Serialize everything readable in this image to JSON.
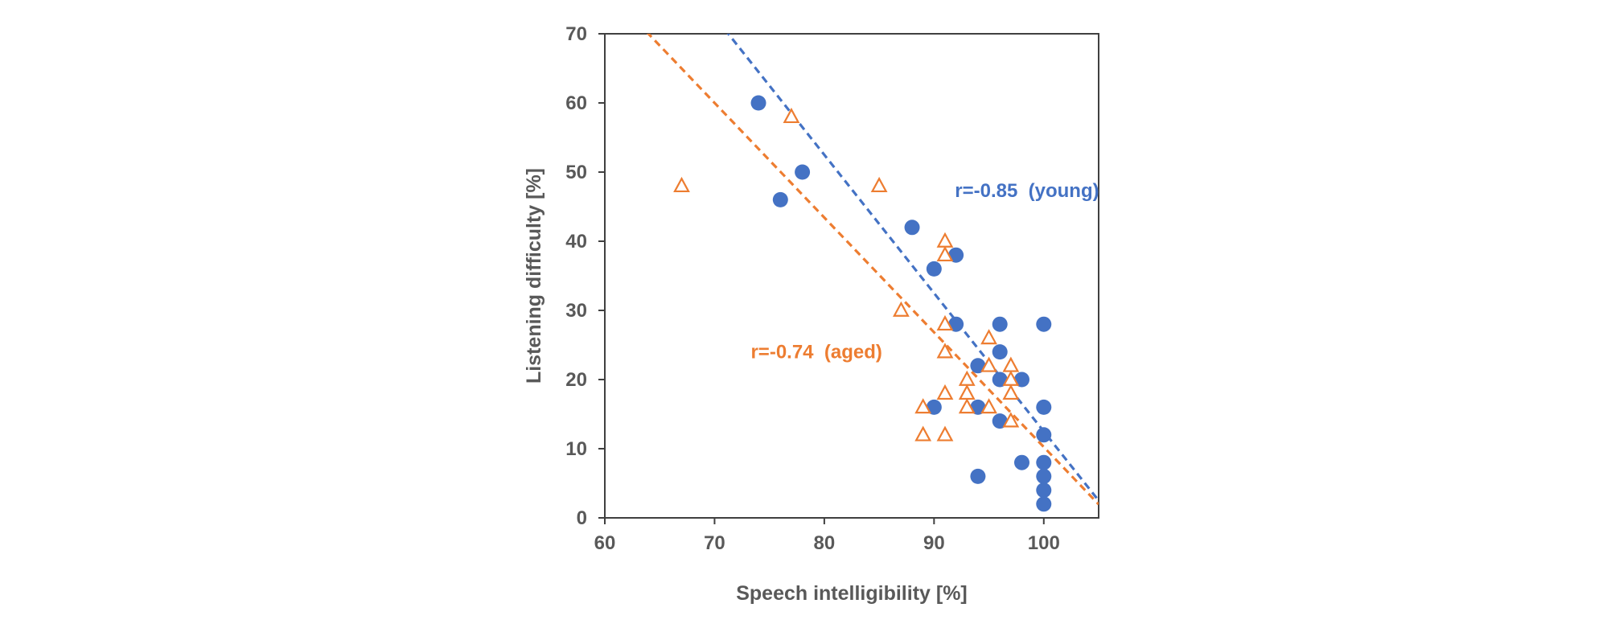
{
  "chart_data": {
    "type": "scatter",
    "xlabel": "Speech intelligibility [%]",
    "ylabel": "Listening difficulty [%]",
    "xlim": [
      60,
      105
    ],
    "ylim": [
      0,
      70
    ],
    "xticks": [
      60,
      70,
      80,
      90,
      100
    ],
    "yticks": [
      0,
      10,
      20,
      30,
      40,
      50,
      60,
      70
    ],
    "grid": false,
    "legend": "none",
    "series": [
      {
        "color": "#4472C4",
        "marker": "filled-circle",
        "points": [
          [
            74,
            60
          ],
          [
            78,
            50
          ],
          [
            76,
            46
          ],
          [
            88,
            42
          ],
          [
            92,
            38
          ],
          [
            90,
            36
          ],
          [
            92,
            28
          ],
          [
            96,
            28
          ],
          [
            100,
            28
          ],
          [
            96,
            24
          ],
          [
            94,
            22
          ],
          [
            96,
            20
          ],
          [
            98,
            20
          ],
          [
            90,
            16
          ],
          [
            94,
            16
          ],
          [
            100,
            16
          ],
          [
            96,
            14
          ],
          [
            100,
            12
          ],
          [
            98,
            8
          ],
          [
            100,
            8
          ],
          [
            94,
            6
          ],
          [
            100,
            6
          ],
          [
            100,
            4
          ],
          [
            100,
            2
          ]
        ],
        "trendline": {
          "slope": -2.0,
          "intercept": 212.5,
          "style": "dashed"
        }
      },
      {
        "color": "#ED7D31",
        "marker": "open-triangle",
        "points": [
          [
            77,
            58
          ],
          [
            67,
            48
          ],
          [
            85,
            48
          ],
          [
            91,
            40
          ],
          [
            91,
            38
          ],
          [
            87,
            30
          ],
          [
            91,
            28
          ],
          [
            95,
            26
          ],
          [
            91,
            24
          ],
          [
            95,
            22
          ],
          [
            97,
            22
          ],
          [
            93,
            20
          ],
          [
            97,
            20
          ],
          [
            91,
            18
          ],
          [
            93,
            18
          ],
          [
            97,
            18
          ],
          [
            89,
            16
          ],
          [
            93,
            16
          ],
          [
            95,
            16
          ],
          [
            97,
            14
          ],
          [
            89,
            12
          ],
          [
            91,
            12
          ]
        ],
        "trendline": {
          "slope": -1.6585,
          "intercept": 176.1,
          "style": "dashed"
        }
      }
    ],
    "annotations": [
      {
        "text": "r=-0.85  (young)",
        "color": "#4472C4",
        "x": 91.9,
        "y": 46.4
      },
      {
        "text": "r=-0.74  (aged)",
        "color": "#ED7D31",
        "x": 73.3,
        "y": 23.1
      }
    ]
  }
}
